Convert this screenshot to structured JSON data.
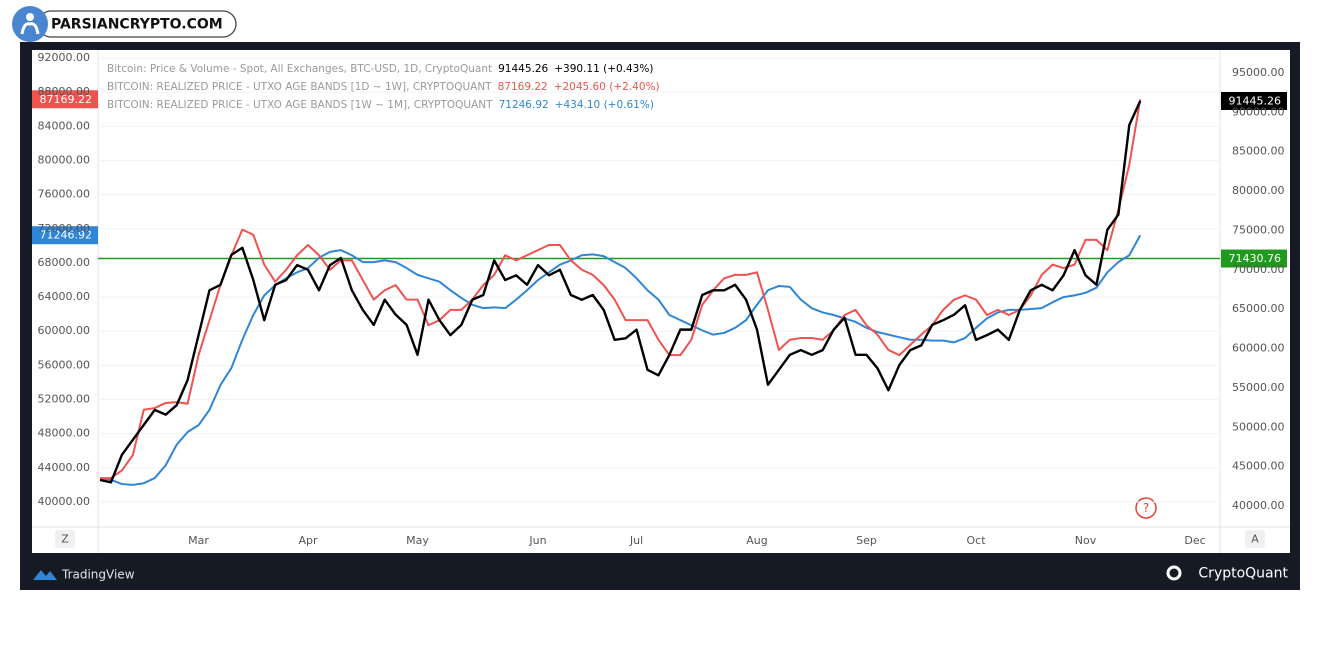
{
  "logo": "PARSIANCRYPTO.COM",
  "footer": {
    "left": "TradingView",
    "right": "CryptoQuant"
  },
  "chart_data": {
    "type": "line",
    "categories": [
      null,
      null,
      null,
      null,
      null,
      null,
      null,
      null,
      null,
      "Mar",
      null,
      null,
      null,
      null,
      null,
      null,
      null,
      null,
      null,
      "Apr",
      null,
      null,
      null,
      null,
      null,
      null,
      null,
      null,
      null,
      "May",
      null,
      null,
      null,
      null,
      null,
      null,
      null,
      null,
      null,
      null,
      "Jun",
      null,
      null,
      null,
      null,
      null,
      null,
      null,
      null,
      "Jul",
      null,
      null,
      null,
      null,
      null,
      null,
      null,
      null,
      null,
      null,
      "Aug",
      null,
      null,
      null,
      null,
      null,
      null,
      null,
      null,
      null,
      "Sep",
      null,
      null,
      null,
      null,
      null,
      null,
      null,
      null,
      null,
      "Oct",
      null,
      null,
      null,
      null,
      null,
      null,
      null,
      null,
      null,
      "Nov",
      null,
      null,
      null,
      null,
      null,
      null,
      null,
      null,
      null,
      "Dec",
      null
    ],
    "series": [
      {
        "name": "Bitcoin: Price & Volume - Spot, All Exchanges, BTC-USD, 1D, CryptoQuant",
        "color": "#000000",
        "axis": "y2",
        "change": "+390.11 (+0.43%)",
        "values": [
          43300,
          43000,
          46500,
          48400,
          50300,
          52200,
          51600,
          52800,
          56000,
          61700,
          67400,
          68100,
          71900,
          72800,
          68700,
          63600,
          68100,
          68700,
          70600,
          70000,
          67400,
          70600,
          71500,
          67400,
          64900,
          63000,
          66200,
          64300,
          63000,
          59200,
          66200,
          63600,
          61700,
          63000,
          66200,
          66800,
          71200,
          68700,
          69300,
          68100,
          70600,
          69300,
          70000,
          66800,
          66200,
          66800,
          64900,
          61100,
          61300,
          62400,
          57300,
          56600,
          59200,
          62400,
          62400,
          66800,
          67400,
          67400,
          68100,
          66200,
          62400,
          55400,
          57300,
          59200,
          59800,
          59200,
          59800,
          62400,
          63900,
          59200,
          59200,
          57500,
          54700,
          57900,
          59800,
          60400,
          63000,
          63600,
          64300,
          65500,
          61100,
          61700,
          62400,
          61100,
          64900,
          67400,
          68100,
          67400,
          69300,
          72500,
          69300,
          68100,
          75100,
          77000,
          88400,
          91445.26,
          null,
          null,
          null,
          null,
          null,
          null
        ]
      },
      {
        "name": "BITCOIN: REALIZED PRICE - UTXO AGE BANDS [1D ~ 1W], CRYPTOQUANT",
        "color": "#ef5350",
        "change": "+2045.60 (+2.40%)",
        "values": [
          42800,
          42800,
          43700,
          45500,
          50800,
          51000,
          51600,
          51700,
          51500,
          57200,
          61300,
          65400,
          68900,
          71900,
          71300,
          67800,
          65800,
          67200,
          68900,
          70100,
          68900,
          67200,
          68300,
          68300,
          66000,
          63700,
          64800,
          65400,
          63700,
          63700,
          60700,
          61300,
          62500,
          62500,
          63700,
          65400,
          66600,
          68900,
          68300,
          68900,
          69500,
          70100,
          70100,
          68300,
          67200,
          66600,
          65400,
          63700,
          61300,
          61300,
          61300,
          59000,
          57200,
          57200,
          59000,
          63100,
          64800,
          66200,
          66600,
          66600,
          66900,
          62500,
          57800,
          59000,
          59200,
          59200,
          59000,
          60100,
          61900,
          62500,
          60700,
          59600,
          57800,
          57200,
          58400,
          59600,
          60700,
          62500,
          63700,
          64200,
          63700,
          61900,
          62500,
          61900,
          62500,
          64200,
          66600,
          67800,
          67400,
          67800,
          70700,
          70700,
          69500,
          74200,
          79500,
          87169.22,
          null,
          null,
          null,
          null,
          null,
          null
        ]
      },
      {
        "name": "BITCOIN: REALIZED PRICE - UTXO AGE BANDS [1W ~ 1M], CRYPTOQUANT",
        "color": "#2f86d6",
        "change": "+434.10 (+0.61%)",
        "values": [
          42800,
          42600,
          42100,
          42000,
          42200,
          42800,
          44300,
          46700,
          48200,
          49000,
          50800,
          53700,
          55700,
          59000,
          61900,
          64200,
          65400,
          66200,
          66900,
          67400,
          68600,
          69300,
          69500,
          68900,
          68100,
          68100,
          68300,
          68100,
          67400,
          66600,
          66200,
          65800,
          64800,
          63900,
          63100,
          62700,
          62800,
          62700,
          63700,
          64800,
          66000,
          66900,
          67800,
          68300,
          68900,
          69000,
          68800,
          68100,
          67400,
          66200,
          64800,
          63700,
          61900,
          61300,
          60700,
          60100,
          59600,
          59800,
          60400,
          61300,
          63100,
          64800,
          65300,
          65200,
          63700,
          62700,
          62200,
          61900,
          61500,
          61100,
          60400,
          59900,
          59600,
          59300,
          59000,
          59000,
          58900,
          58900,
          58700,
          59200,
          60400,
          61500,
          62200,
          62500,
          62500,
          62600,
          62700,
          63400,
          64000,
          64200,
          64500,
          65100,
          66900,
          68100,
          68900,
          71246.92,
          null,
          null,
          null,
          null,
          null,
          null
        ]
      }
    ],
    "hline": {
      "value": 71430.76,
      "color": "#1f9a1f",
      "axis": "y2"
    },
    "ylim": [
      37070,
      92940
    ],
    "yticks": [
      {
        "value": 40000,
        "label": "40000.00"
      },
      {
        "value": 44000,
        "label": "44000.00"
      },
      {
        "value": 48000,
        "label": "48000.00"
      },
      {
        "value": 52000,
        "label": "52000.00"
      },
      {
        "value": 56000,
        "label": "56000.00"
      },
      {
        "value": 60000,
        "label": "60000.00"
      },
      {
        "value": 64000,
        "label": "64000.00"
      },
      {
        "value": 68000,
        "label": "68000.00"
      },
      {
        "value": 72000,
        "label": "72000.00"
      },
      {
        "value": 76000,
        "label": "76000.00"
      },
      {
        "value": 80000,
        "label": "80000.00"
      },
      {
        "value": 84000,
        "label": "84000.00"
      },
      {
        "value": 88000,
        "label": "88000.00"
      },
      {
        "value": 92000,
        "label": "92000.00"
      }
    ],
    "y2lim": [
      37330,
      97920
    ],
    "y2ticks": [
      {
        "value": 40000,
        "label": "40000.00"
      },
      {
        "value": 45000,
        "label": "45000.00"
      },
      {
        "value": 50000,
        "label": "50000.00"
      },
      {
        "value": 55000,
        "label": "55000.00"
      },
      {
        "value": 60000,
        "label": "60000.00"
      },
      {
        "value": 65000,
        "label": "65000.00"
      },
      {
        "value": 70000,
        "label": "70000.00"
      },
      {
        "value": 75000,
        "label": "75000.00"
      },
      {
        "value": 80000,
        "label": "80000.00"
      },
      {
        "value": 85000,
        "label": "85000.00"
      },
      {
        "value": 90000,
        "label": "90000.00"
      },
      {
        "value": 95000,
        "label": "95000.00"
      }
    ],
    "grid": true,
    "y_scale_button": "Z",
    "y2_scale_button": "A",
    "help_icon": "?"
  }
}
